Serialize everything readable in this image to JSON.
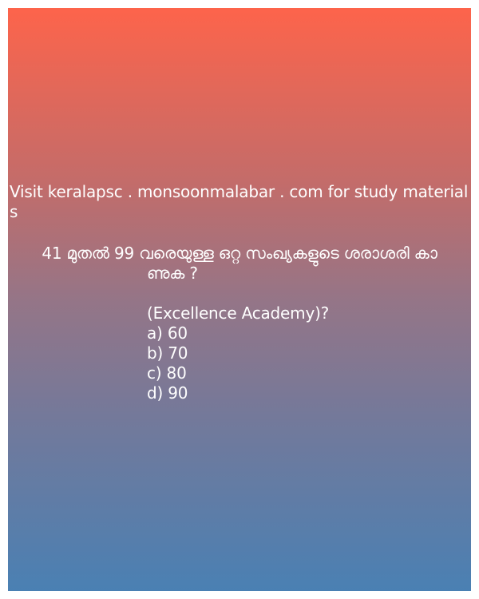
{
  "promo_text": "Visit keralapsc . monsoonmalabar . com for study materials",
  "question": {
    "line1": "41 മുതൽ 99 വരെയുള്ള ഒറ്റ സംഖ്യകളുടെ ശരാശരി കാ",
    "line2": "ണുക ?",
    "source": "(Excellence Academy)?",
    "options": {
      "a": "a) 60",
      "b": "b) 70",
      "c": "c) 80",
      "d": "d) 90"
    }
  },
  "colors": {
    "gradient_top": "#fd644b",
    "gradient_bottom": "#4a80b3",
    "text": "#ffffff"
  }
}
